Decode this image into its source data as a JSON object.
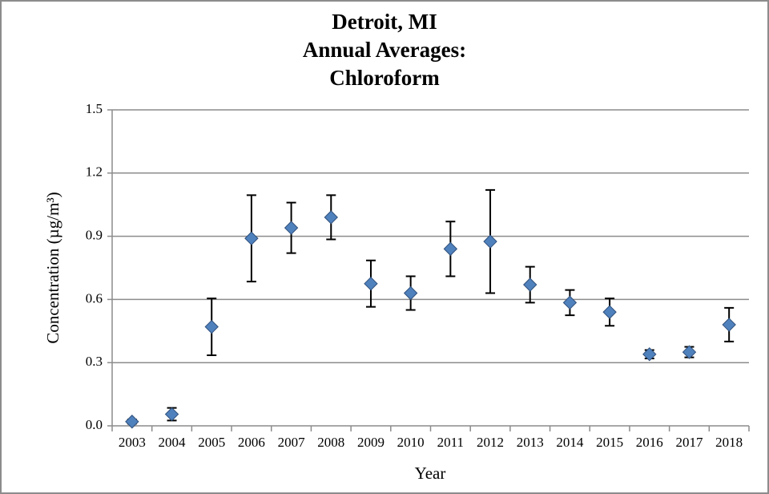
{
  "chart_data": {
    "type": "scatter",
    "title": [
      "Detroit, MI",
      "Annual Averages:",
      "Chloroform"
    ],
    "x_label": "Year",
    "y_label": "Concentration (µg/m³)",
    "categories": [
      "2003",
      "2004",
      "2005",
      "2006",
      "2007",
      "2008",
      "2009",
      "2010",
      "2011",
      "2012",
      "2013",
      "2014",
      "2015",
      "2016",
      "2017",
      "2018"
    ],
    "series": [
      {
        "color": "#4f81bd",
        "values": [
          0.02,
          0.055,
          0.47,
          0.89,
          0.94,
          0.99,
          0.675,
          0.63,
          0.84,
          0.875,
          0.67,
          0.585,
          0.54,
          0.34,
          0.35,
          0.48
        ],
        "errors": [
          0.01,
          0.03,
          0.135,
          0.205,
          0.12,
          0.105,
          0.11,
          0.08,
          0.13,
          0.245,
          0.085,
          0.06,
          0.065,
          0.02,
          0.025,
          0.08
        ]
      }
    ],
    "ylim": [
      0,
      1.5
    ],
    "yticks": [
      {
        "value": 0,
        "label": "0.0"
      },
      0.3,
      0.6,
      0.9,
      1.2,
      1.5
    ],
    "grid": true
  }
}
